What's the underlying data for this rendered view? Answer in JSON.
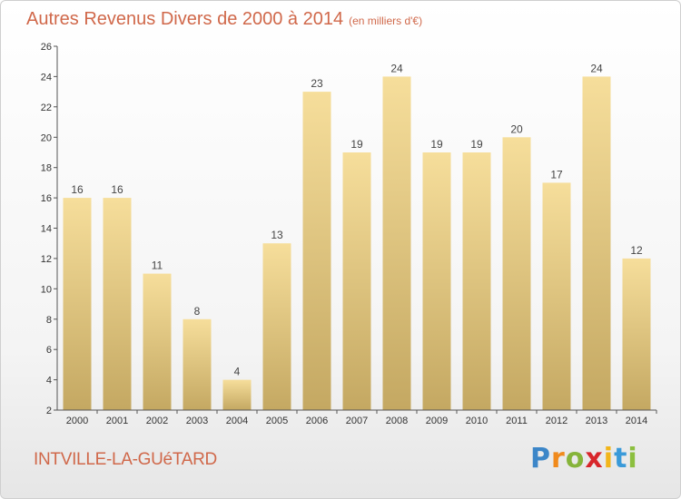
{
  "header": {
    "title": "Autres Revenus Divers de 2000 à 2014",
    "subtitle": "(en milliers d'€)"
  },
  "footer": {
    "commune": "INTVILLE-LA-GUéTARD",
    "logo": "Proxiti",
    "logo_letters": [
      "P",
      "r",
      "o",
      "x",
      "i",
      "t",
      "i"
    ]
  },
  "colors": {
    "title": "#d0684a",
    "bar_light": "#f6de9b",
    "bar_dark": "#c4a862",
    "axis": "#555555"
  },
  "chart_data": {
    "type": "bar",
    "title": "Autres Revenus Divers de 2000 à 2014",
    "subtitle": "(en milliers d'€)",
    "xlabel": "",
    "ylabel": "",
    "categories": [
      "2000",
      "2001",
      "2002",
      "2003",
      "2004",
      "2005",
      "2006",
      "2007",
      "2008",
      "2009",
      "2010",
      "2011",
      "2012",
      "2013",
      "2014"
    ],
    "values": [
      16,
      16,
      11,
      8,
      4,
      13,
      23,
      19,
      24,
      19,
      19,
      20,
      17,
      24,
      12
    ],
    "ylim": [
      2,
      26
    ],
    "yticks": [
      2,
      4,
      6,
      8,
      10,
      12,
      14,
      16,
      18,
      20,
      22,
      24,
      26
    ],
    "grid": false,
    "legend": "none"
  }
}
